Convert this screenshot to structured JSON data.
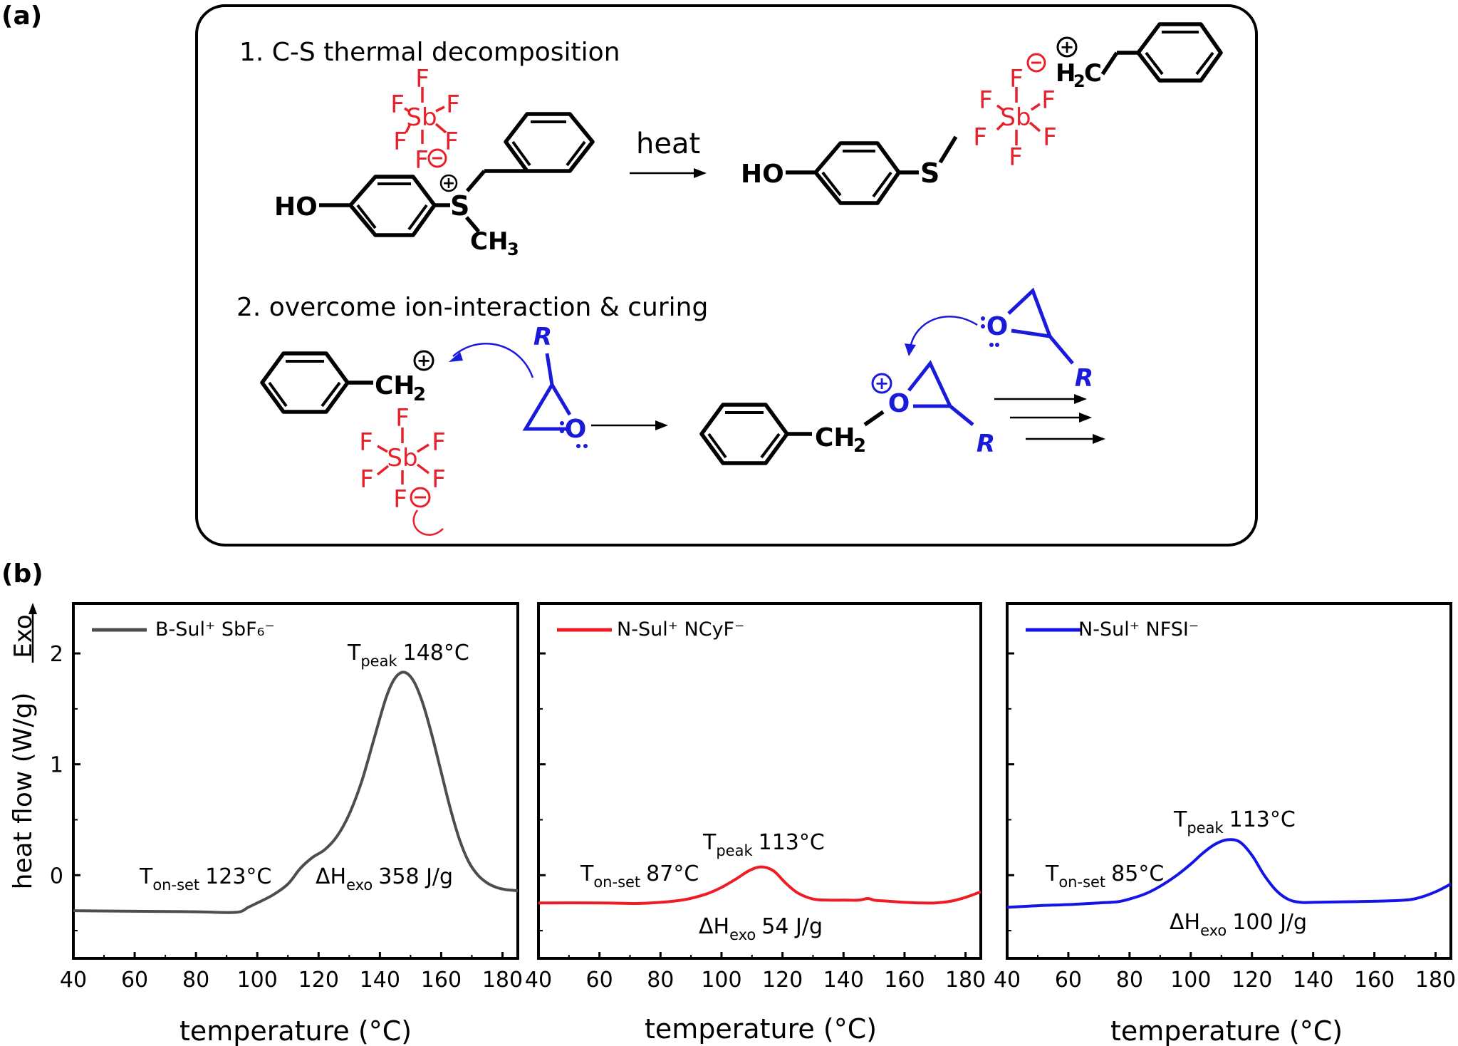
{
  "panel_a": {
    "label": "(a)",
    "step1": "1. C-S thermal decomposition",
    "step2": "2. overcome ion-interaction & curing",
    "heat": "heat",
    "atoms": {
      "HO": "HO",
      "S": "S",
      "CH3": "CH",
      "sub3": "3",
      "H2C": "H",
      "sub2": "2",
      "C": "C",
      "CH2": "CH",
      "F": "F",
      "Sb": "Sb",
      "O": "O",
      "R": "R",
      "plus": "+",
      "minus": "−"
    }
  },
  "panel_b": {
    "label": "(b)"
  },
  "colors": {
    "anion_red": "#e8202a",
    "epoxide_blue": "#1a1adb",
    "series_gray": "#4d4d4d",
    "series_red": "#ee1c24",
    "series_blue": "#1414e6"
  },
  "chart_data": [
    {
      "type": "line",
      "xlabel": "temperature (°C)",
      "ylabel": "heat flow (W/g)",
      "ylabel_extra": "Exo",
      "xlim": [
        40,
        185
      ],
      "ylim": [
        -0.75,
        2.45
      ],
      "xticks": [
        40,
        60,
        80,
        100,
        120,
        140,
        160,
        180
      ],
      "yticks": [
        0,
        1,
        2
      ],
      "series": [
        {
          "name": "B-Sul⁺ SbF₆⁻",
          "x": [
            40,
            60,
            80,
            93,
            97,
            100,
            105,
            110,
            114,
            118,
            122,
            126,
            130,
            134,
            138,
            142,
            145,
            148,
            151,
            154,
            157,
            160,
            163,
            166,
            169,
            172,
            175,
            178,
            181,
            185
          ],
          "y": [
            -0.32,
            -0.325,
            -0.33,
            -0.335,
            -0.29,
            -0.25,
            -0.18,
            -0.08,
            0.06,
            0.16,
            0.23,
            0.35,
            0.55,
            0.84,
            1.22,
            1.6,
            1.78,
            1.83,
            1.75,
            1.55,
            1.26,
            0.93,
            0.6,
            0.32,
            0.12,
            0.0,
            -0.07,
            -0.11,
            -0.13,
            -0.14
          ]
        }
      ],
      "annotations": {
        "tpeak": {
          "main": "T",
          "sub": "peak",
          "value": "148°C"
        },
        "tonset": {
          "main": "T",
          "sub": "on-set",
          "value": "123°C"
        },
        "dh": {
          "main": "ΔH",
          "sub": "exo",
          "value": "358 J/g"
        }
      }
    },
    {
      "type": "line",
      "xlabel": "temperature (°C)",
      "xlim": [
        40,
        185
      ],
      "ylim": [
        -0.75,
        2.45
      ],
      "xticks": [
        40,
        60,
        80,
        100,
        120,
        140,
        160,
        180
      ],
      "series": [
        {
          "name": "N-Sul⁺ NCyF⁻",
          "x": [
            40,
            60,
            72,
            80,
            88,
            95,
            100,
            105,
            109,
            113,
            117,
            121,
            125,
            130,
            135,
            140,
            145,
            148,
            150,
            152,
            155,
            160,
            165,
            170,
            175,
            180,
            185
          ],
          "y": [
            -0.25,
            -0.25,
            -0.255,
            -0.245,
            -0.22,
            -0.17,
            -0.11,
            -0.03,
            0.04,
            0.075,
            0.04,
            -0.07,
            -0.16,
            -0.215,
            -0.225,
            -0.225,
            -0.225,
            -0.21,
            -0.225,
            -0.23,
            -0.235,
            -0.245,
            -0.25,
            -0.25,
            -0.235,
            -0.2,
            -0.15
          ]
        }
      ],
      "annotations": {
        "tpeak": {
          "main": "T",
          "sub": "peak",
          "value": "113°C"
        },
        "tonset": {
          "main": "T",
          "sub": "on-set",
          "value": "87°C"
        },
        "dh": {
          "main": "ΔH",
          "sub": "exo",
          "value": "54 J/g"
        }
      }
    },
    {
      "type": "line",
      "xlabel": "temperature (°C)",
      "xlim": [
        40,
        185
      ],
      "ylim": [
        -0.75,
        2.45
      ],
      "xticks": [
        40,
        60,
        80,
        100,
        120,
        140,
        160,
        180
      ],
      "series": [
        {
          "name": "N-Sul⁺ NFSI⁻",
          "x": [
            40,
            50,
            60,
            70,
            76,
            80,
            85,
            90,
            95,
            100,
            104,
            108,
            112,
            116,
            120,
            124,
            128,
            132,
            136,
            140,
            150,
            160,
            170,
            175,
            180,
            185
          ],
          "y": [
            -0.29,
            -0.275,
            -0.265,
            -0.25,
            -0.24,
            -0.215,
            -0.17,
            -0.1,
            -0.01,
            0.1,
            0.2,
            0.28,
            0.32,
            0.3,
            0.18,
            0.0,
            -0.14,
            -0.22,
            -0.245,
            -0.245,
            -0.24,
            -0.235,
            -0.225,
            -0.2,
            -0.15,
            -0.08
          ]
        }
      ],
      "annotations": {
        "tpeak": {
          "main": "T",
          "sub": "peak",
          "value": "113°C"
        },
        "tonset": {
          "main": "T",
          "sub": "on-set",
          "value": "85°C"
        },
        "dh": {
          "main": "ΔH",
          "sub": "exo",
          "value": "100 J/g"
        }
      }
    }
  ]
}
